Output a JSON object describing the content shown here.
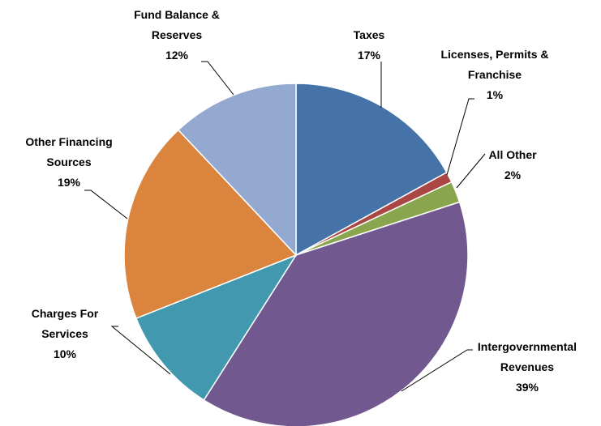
{
  "chart_data": {
    "type": "pie",
    "categories": [
      "Taxes",
      "Licenses, Permits & Franchise",
      "All Other",
      "Intergovernmental Revenues",
      "Charges For Services",
      "Other Financing Sources",
      "Fund Balance & Reserves"
    ],
    "values": [
      17,
      1,
      2,
      39,
      10,
      19,
      12
    ],
    "value_labels": [
      "17%",
      "1%",
      "2%",
      "39%",
      "10%",
      "19%",
      "12%"
    ],
    "colors": [
      "#4572a7",
      "#aa4643",
      "#89a54e",
      "#71588f",
      "#4198af",
      "#db843d",
      "#93a9cf"
    ]
  }
}
